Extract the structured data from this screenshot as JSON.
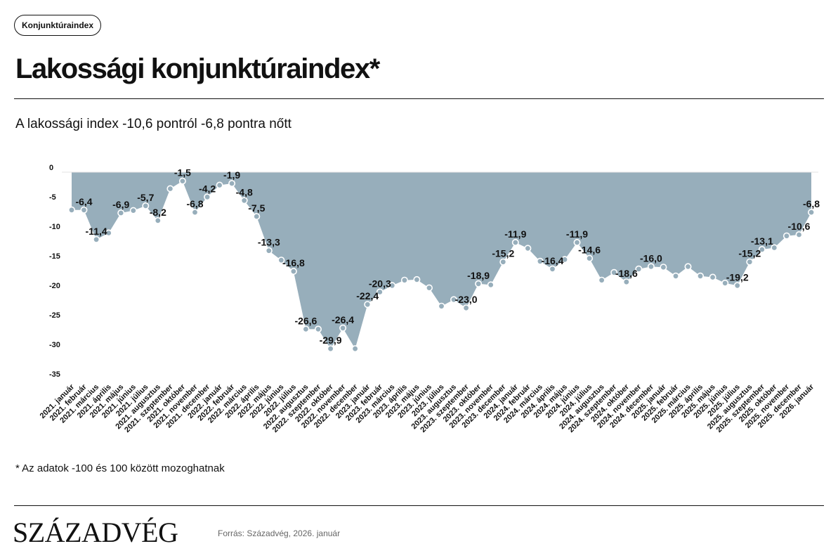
{
  "header": {
    "tag": "Konjunktúraindex",
    "title": "Lakossági konjunktúraindex*",
    "subtitle": "A lakossági index -10,6 pontról -6,8 pontra nőtt"
  },
  "footer": {
    "footnote": "* Az adatok -100 és 100 között mozoghatnak",
    "brand": "SZÁZADVÉG",
    "source": "Forrás: Századvég, 2026. január"
  },
  "colors": {
    "area_fill": "#97aebb",
    "point_fill": "#97aebb",
    "point_stroke": "#ffffff",
    "text": "#111111"
  },
  "chart_data": {
    "type": "area",
    "title": "",
    "xlabel": "",
    "ylabel": "",
    "ylim": [
      -35,
      0
    ],
    "yticks": [
      0,
      -5,
      -10,
      -15,
      -20,
      -25,
      -30,
      -35
    ],
    "grid": false,
    "legend": "none",
    "categories": [
      "2021. január",
      "2021. február",
      "2021. március",
      "2021. április",
      "2021. május",
      "2021. június",
      "2021. július",
      "2021. augusztus",
      "2021. szeptember",
      "2021. október",
      "2021. november",
      "2021. december",
      "2022. január",
      "2022. február",
      "2022. március",
      "2022. április",
      "2022. május",
      "2022. június",
      "2022. július",
      "2022. augusztus",
      "2022. szeptember",
      "2022. október",
      "2022. november",
      "2022. december",
      "2023. január",
      "2023. február",
      "2023. március",
      "2023. április",
      "2023. május",
      "2023. június",
      "2023. július",
      "2023. augusztus",
      "2023. szeptember",
      "2023. október",
      "2023. november",
      "2023. december",
      "2024. január",
      "2024. február",
      "2024. március",
      "2024. április",
      "2024. május",
      "2024. június",
      "2024. július",
      "2024. augusztus",
      "2024. szeptember",
      "2024. október",
      "2024. november",
      "2024. december",
      "2025. január",
      "2025. február",
      "2025. március",
      "2025. április",
      "2025. május",
      "2025. június",
      "2025. július",
      "2025. augusztus",
      "2025. szeptember",
      "2025. október",
      "2025. november",
      "2025. december",
      "2026. január"
    ],
    "series": [
      {
        "values": [
          -6.4,
          -6.4,
          -11.4,
          -10.3,
          -6.9,
          -6.5,
          -5.7,
          -8.2,
          -2.8,
          -1.5,
          -6.8,
          -4.2,
          -2.2,
          -1.9,
          -4.8,
          -7.5,
          -13.3,
          -14.9,
          -16.8,
          -26.6,
          -26.6,
          -29.9,
          -26.4,
          -29.9,
          -22.4,
          -20.3,
          -19.2,
          -18.3,
          -18.2,
          -19.6,
          -22.7,
          -21.6,
          -23.0,
          -18.9,
          -19.1,
          -15.2,
          -11.9,
          -12.9,
          -15.1,
          -16.4,
          -14.8,
          -11.9,
          -14.6,
          -18.3,
          -17.0,
          -18.6,
          -16.4,
          -16.0,
          -16.1,
          -17.6,
          -16.0,
          -17.6,
          -17.8,
          -18.8,
          -19.2,
          -15.2,
          -13.1,
          -12.8,
          -10.8,
          -10.6,
          -6.8
        ],
        "labels": [
          "",
          "-6,4",
          "-11,4",
          "",
          "-6,9",
          "",
          "-5,7",
          "-8,2",
          "",
          "-1,5",
          "-6,8",
          "-4,2",
          "",
          "-1,9",
          "-4,8",
          "-7,5",
          "-13,3",
          "",
          "-16,8",
          "-26,6",
          "",
          "-29,9",
          "-26,4",
          "",
          "-22,4",
          "-20,3",
          "",
          "",
          "",
          "",
          "",
          "",
          "-23,0",
          "-18,9",
          "",
          "-15,2",
          "-11,9",
          "",
          "",
          "-16,4",
          "",
          "-11,9",
          "-14,6",
          "",
          "",
          "-18,6",
          "",
          "-16,0",
          "",
          "",
          "",
          "",
          "",
          "",
          "-19,2",
          "-15,2",
          "-13,1",
          "",
          "",
          "-10,6",
          "-6,8"
        ]
      }
    ]
  }
}
